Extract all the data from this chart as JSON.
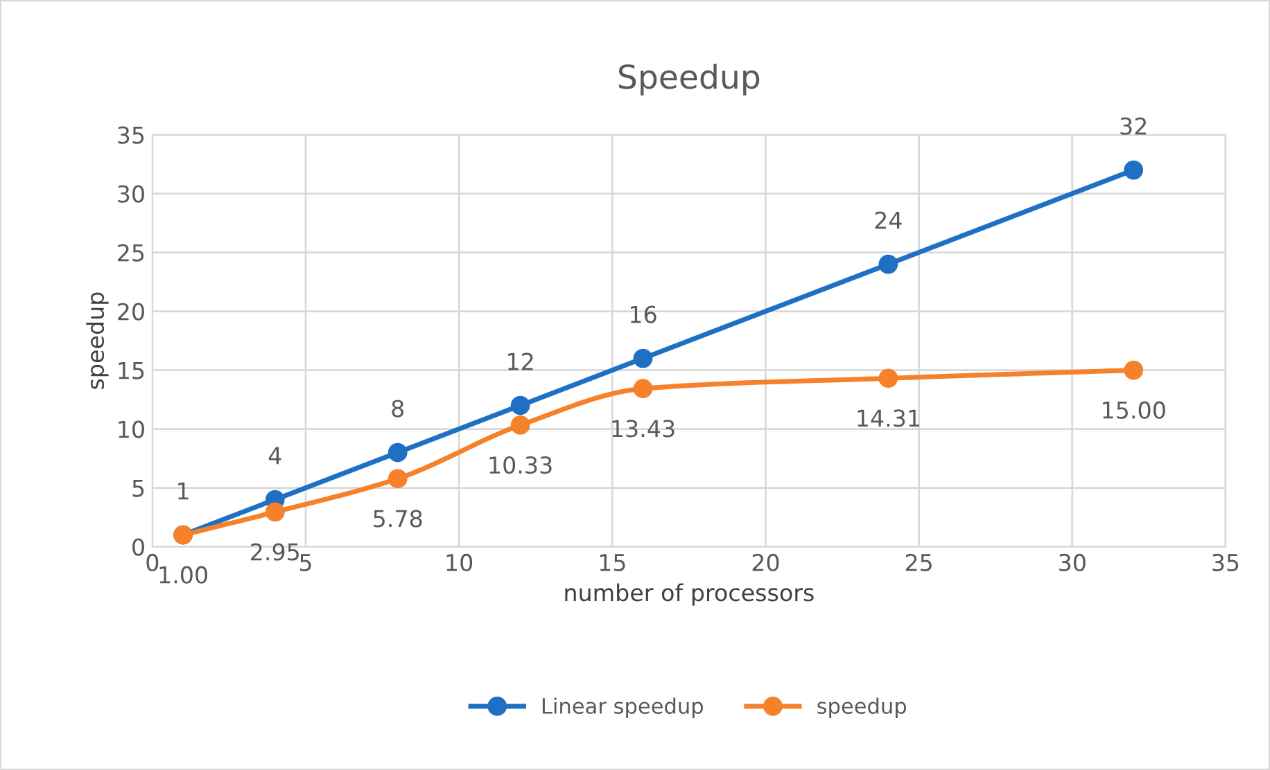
{
  "chart_data": {
    "type": "line",
    "title": "Speedup",
    "xlabel": "number of processors",
    "ylabel": "speedup",
    "x": [
      1,
      4,
      8,
      12,
      16,
      24,
      32
    ],
    "series": [
      {
        "name": "Linear speedup",
        "color": "#1f70c4",
        "values": [
          1,
          4,
          8,
          12,
          16,
          24,
          32
        ],
        "value_labels": [
          "1",
          "4",
          "8",
          "12",
          "16",
          "24",
          "32"
        ]
      },
      {
        "name": "speedup",
        "color": "#f5822a",
        "values": [
          1.0,
          2.95,
          5.78,
          10.33,
          13.43,
          14.31,
          15.0
        ],
        "value_labels": [
          "1.00",
          "2.95",
          "5.78",
          "10.33",
          "13.43",
          "14.31",
          "15.00"
        ]
      }
    ],
    "xlim": [
      0,
      35
    ],
    "ylim": [
      0,
      35
    ],
    "xticks": [
      0,
      5,
      10,
      15,
      20,
      25,
      30,
      35
    ],
    "yticks": [
      0,
      5,
      10,
      15,
      20,
      25,
      30,
      35
    ],
    "grid": true,
    "legend": "bottom",
    "marker": "circle",
    "line_style": "solid"
  }
}
